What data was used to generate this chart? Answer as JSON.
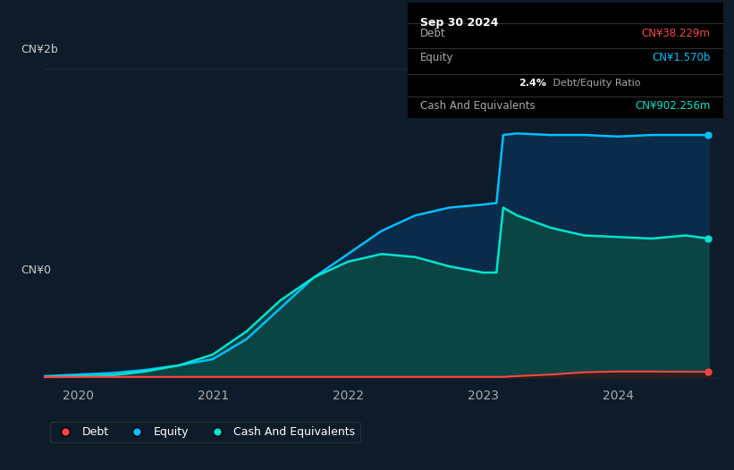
{
  "background_color": "#0d1b2a",
  "plot_bg_color": "#0d1b2a",
  "ylabel_top": "CN¥2b",
  "ylabel_bottom": "CN¥0",
  "x_ticks": [
    2020,
    2021,
    2022,
    2023,
    2024
  ],
  "ylim": [
    -0.05,
    2.2
  ],
  "tooltip": {
    "date": "Sep 30 2024",
    "debt_label": "Debt",
    "debt_value": "CN¥38.229m",
    "debt_color": "#ff4444",
    "equity_label": "Equity",
    "equity_value": "CN¥1.570b",
    "equity_color": "#00bfff",
    "ratio_value": "2.4%",
    "ratio_text": "Debt/Equity Ratio",
    "cash_label": "Cash And Equivalents",
    "cash_value": "CN¥902.256m",
    "cash_color": "#00e5cc"
  },
  "legend": [
    {
      "label": "Debt",
      "color": "#ff4444"
    },
    {
      "label": "Equity",
      "color": "#00bfff"
    },
    {
      "label": "Cash And Equivalents",
      "color": "#00e5cc"
    }
  ],
  "equity_color": "#00bfff",
  "debt_color": "#ff4444",
  "cash_color": "#00e5cc",
  "equity_fill": "#0a3050",
  "cash_fill": "#0a4a44",
  "grid_color": "#1e2d3d",
  "time": [
    2019.75,
    2020.0,
    2020.25,
    2020.5,
    2020.75,
    2021.0,
    2021.25,
    2021.5,
    2021.75,
    2022.0,
    2022.25,
    2022.5,
    2022.75,
    2023.0,
    2023.1,
    2023.15,
    2023.25,
    2023.5,
    2023.75,
    2024.0,
    2024.25,
    2024.5,
    2024.67
  ],
  "equity": [
    0.01,
    0.02,
    0.03,
    0.05,
    0.08,
    0.12,
    0.25,
    0.45,
    0.65,
    0.8,
    0.95,
    1.05,
    1.1,
    1.12,
    1.13,
    1.57,
    1.58,
    1.57,
    1.57,
    1.56,
    1.57,
    1.57,
    1.57
  ],
  "cash": [
    0.005,
    0.01,
    0.015,
    0.04,
    0.08,
    0.15,
    0.3,
    0.5,
    0.65,
    0.75,
    0.8,
    0.78,
    0.72,
    0.68,
    0.68,
    1.1,
    1.05,
    0.97,
    0.92,
    0.91,
    0.9,
    0.92,
    0.9
  ],
  "debt": [
    0.005,
    0.005,
    0.005,
    0.005,
    0.005,
    0.005,
    0.005,
    0.005,
    0.005,
    0.005,
    0.005,
    0.005,
    0.005,
    0.005,
    0.005,
    0.005,
    0.01,
    0.02,
    0.035,
    0.04,
    0.04,
    0.038,
    0.038
  ]
}
